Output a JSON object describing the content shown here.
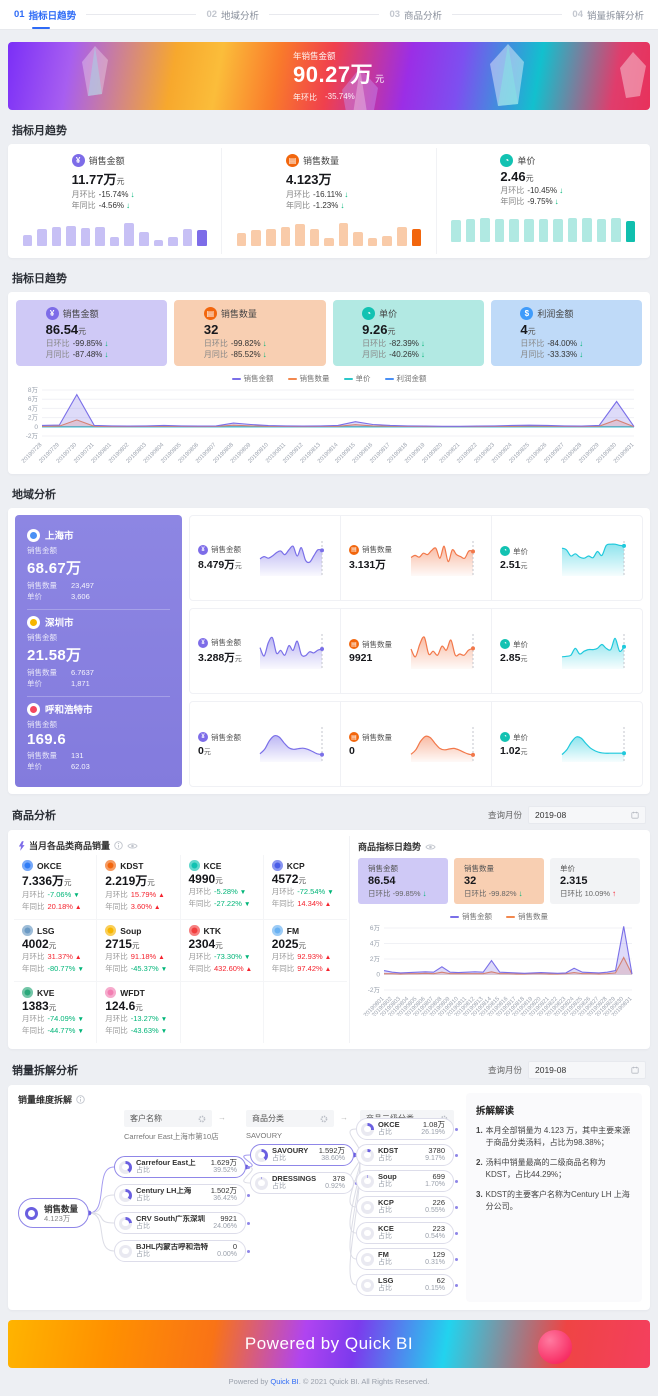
{
  "nav": {
    "steps": [
      {
        "num": "01",
        "label": "指标日趋势"
      },
      {
        "num": "02",
        "label": "地域分析"
      },
      {
        "num": "03",
        "label": "商品分析"
      },
      {
        "num": "04",
        "label": "销量拆解分析"
      }
    ]
  },
  "banner": {
    "label": "年销售金额",
    "value": "90.27万",
    "unit": "元",
    "yoy_label": "年环比",
    "yoy_value": "-35.74%"
  },
  "monthly": {
    "section_title": "指标月趋势",
    "cards": [
      {
        "label": "销售金额",
        "value": "11.77万",
        "unit": "元",
        "rows": [
          {
            "k": "月环比",
            "v": "-15.74%",
            "dir": "down"
          },
          {
            "k": "年同比",
            "v": "-4.56%",
            "dir": "down"
          }
        ]
      },
      {
        "label": "销售数量",
        "value": "4.123万",
        "unit": "",
        "rows": [
          {
            "k": "月环比",
            "v": "-16.11%",
            "dir": "down"
          },
          {
            "k": "年同比",
            "v": "-1.23%",
            "dir": "down"
          }
        ]
      },
      {
        "label": "单价",
        "value": "2.46",
        "unit": "元",
        "rows": [
          {
            "k": "月环比",
            "v": "-10.45%",
            "dir": "down"
          },
          {
            "k": "年同比",
            "v": "-9.75%",
            "dir": "down"
          }
        ]
      }
    ]
  },
  "daily": {
    "section_title": "指标日趋势",
    "cards": [
      {
        "label": "销售金额",
        "value": "86.54",
        "unit": "元",
        "rows": [
          {
            "k": "日环比",
            "v": "-99.85%",
            "dir": "down"
          },
          {
            "k": "月同比",
            "v": "-87.48%",
            "dir": "down"
          }
        ]
      },
      {
        "label": "销售数量",
        "value": "32",
        "unit": "",
        "rows": [
          {
            "k": "日环比",
            "v": "-99.82%",
            "dir": "down"
          },
          {
            "k": "月同比",
            "v": "-85.52%",
            "dir": "down"
          }
        ]
      },
      {
        "label": "单价",
        "value": "9.26",
        "unit": "元",
        "rows": [
          {
            "k": "日环比",
            "v": "-82.39%",
            "dir": "down"
          },
          {
            "k": "月同比",
            "v": "-40.26%",
            "dir": "down"
          }
        ]
      },
      {
        "label": "利润金额",
        "value": "4",
        "unit": "元",
        "rows": [
          {
            "k": "日环比",
            "v": "-84.00%",
            "dir": "down"
          },
          {
            "k": "月同比",
            "v": "-33.33%",
            "dir": "down"
          }
        ]
      }
    ],
    "legend": [
      "销售金额",
      "销售数量",
      "单价",
      "利润金额"
    ]
  },
  "region": {
    "section_title": "地域分析",
    "cities": [
      {
        "name": "上海市",
        "amount_label": "销售金额",
        "amount": "68.67万",
        "qty_label": "销售数量",
        "qty": "23,497",
        "price_label": "单价",
        "price": "3,606"
      },
      {
        "name": "深圳市",
        "amount_label": "销售金额",
        "amount": "21.58万",
        "qty_label": "销售数量",
        "qty": "6.7637",
        "price_label": "单价",
        "price": "1,871"
      },
      {
        "name": "呼和浩特市",
        "amount_label": "销售金额",
        "amount": "169.6",
        "qty_label": "销售数量",
        "qty": "131",
        "price_label": "单价",
        "price": "62.03"
      }
    ],
    "charts": [
      {
        "label": "销售金额",
        "value": "8.479万",
        "unit": "元"
      },
      {
        "label": "销售数量",
        "value": "3.131万",
        "unit": ""
      },
      {
        "label": "单价",
        "value": "2.51",
        "unit": "元"
      },
      {
        "label": "销售金额",
        "value": "3.288万",
        "unit": "元"
      },
      {
        "label": "销售数量",
        "value": "9921",
        "unit": ""
      },
      {
        "label": "单价",
        "value": "2.85",
        "unit": "元"
      },
      {
        "label": "销售金额",
        "value": "0",
        "unit": "元"
      },
      {
        "label": "销售数量",
        "value": "0",
        "unit": ""
      },
      {
        "label": "单价",
        "value": "1.02",
        "unit": "元"
      }
    ]
  },
  "products": {
    "section_title": "商品分析",
    "query_label": "查询月份",
    "query_value": "2019-08",
    "left_title": "当月各品类商品销量",
    "mom_label": "月环比",
    "yoy_label": "年同比",
    "items": [
      {
        "name": "OKCE",
        "value": "7.336万",
        "unit": "元",
        "mom": "-7.06%",
        "mom_dir": "down",
        "yoy": "20.18%",
        "yoy_dir": "up"
      },
      {
        "name": "KDST",
        "value": "2.219万",
        "unit": "元",
        "mom": "15.79%",
        "mom_dir": "up",
        "yoy": "3.60%",
        "yoy_dir": "up"
      },
      {
        "name": "KCE",
        "value": "4990",
        "unit": "元",
        "mom": "-5.28%",
        "mom_dir": "down",
        "yoy": "-27.22%",
        "yoy_dir": "down"
      },
      {
        "name": "KCP",
        "value": "4572",
        "unit": "元",
        "mom": "-72.54%",
        "mom_dir": "down",
        "yoy": "14.34%",
        "yoy_dir": "up"
      },
      {
        "name": "LSG",
        "value": "4002",
        "unit": "元",
        "mom": "31.37%",
        "mom_dir": "up",
        "yoy": "-80.77%",
        "yoy_dir": "down"
      },
      {
        "name": "Soup",
        "value": "2715",
        "unit": "元",
        "mom": "91.18%",
        "mom_dir": "up",
        "yoy": "-45.37%",
        "yoy_dir": "down"
      },
      {
        "name": "KTK",
        "value": "2304",
        "unit": "元",
        "mom": "-73.30%",
        "mom_dir": "down",
        "yoy": "432.60%",
        "yoy_dir": "up"
      },
      {
        "name": "FM",
        "value": "2025",
        "unit": "元",
        "mom": "92.93%",
        "mom_dir": "up",
        "yoy": "97.42%",
        "yoy_dir": "up"
      },
      {
        "name": "KVE",
        "value": "1383",
        "unit": "元",
        "mom": "-74.09%",
        "mom_dir": "down",
        "yoy": "-44.77%",
        "yoy_dir": "down"
      },
      {
        "name": "WFDT",
        "value": "124.6",
        "unit": "元",
        "mom": "-13.27%",
        "mom_dir": "down",
        "yoy": "-43.63%",
        "yoy_dir": "down"
      }
    ],
    "right_title": "商品指标日趋势",
    "right_cards": [
      {
        "label": "销售金额",
        "value": "86.54",
        "k": "日环比",
        "v": "-99.85%",
        "dir": "down"
      },
      {
        "label": "销售数量",
        "value": "32",
        "k": "日环比",
        "v": "-99.82%",
        "dir": "down"
      },
      {
        "label": "单价",
        "value": "2.315",
        "k": "日环比",
        "v": "10.09%",
        "dir": "up"
      }
    ],
    "legend": [
      "销售金额",
      "销售数量"
    ]
  },
  "decomp": {
    "section_title": "销量拆解分析",
    "query_label": "查询月份",
    "query_value": "2019-08",
    "left_title": "销量维度拆解",
    "share_label": "占比",
    "col_headers": [
      {
        "label": "客户名称",
        "value": "Carrefour East上海市第10店"
      },
      {
        "label": "商品分类",
        "value": "SAVOURY"
      },
      {
        "label": "商品二级分类",
        "value": ""
      }
    ],
    "root": {
      "label": "销售数量",
      "value": "4.123万"
    },
    "level1": [
      {
        "name": "Carrefour East上",
        "value": "1.629万",
        "share": "39.52%"
      },
      {
        "name": "Century LH上海",
        "value": "1.502万",
        "share": "36.42%"
      },
      {
        "name": "CRV South广东深圳",
        "value": "9921",
        "share": "24.06%"
      },
      {
        "name": "BJHL内蒙古呼和浩特",
        "value": "0",
        "share": "0.00%"
      }
    ],
    "level2": [
      {
        "name": "SAVOURY",
        "value": "1.592万",
        "share": "38.60%"
      },
      {
        "name": "DRESSINGS",
        "value": "378",
        "share": "0.92%"
      }
    ],
    "level3": [
      {
        "name": "OKCE",
        "value": "1.08万",
        "share": "26.19%"
      },
      {
        "name": "KDST",
        "value": "3780",
        "share": "9.17%"
      },
      {
        "name": "Soup",
        "value": "699",
        "share": "1.70%"
      },
      {
        "name": "KCP",
        "value": "226",
        "share": "0.55%"
      },
      {
        "name": "KCE",
        "value": "223",
        "share": "0.54%"
      },
      {
        "name": "FM",
        "value": "129",
        "share": "0.31%"
      },
      {
        "name": "LSG",
        "value": "62",
        "share": "0.15%"
      }
    ],
    "insights_title": "拆解解读",
    "insights": [
      {
        "num": "1.",
        "text": "本月全部销量为 4.123 万，其中主要来源于商品分类汤料，占比为98.38%；"
      },
      {
        "num": "2.",
        "text": "汤料中销量最高的二级商品名称为KDST，占比44.29%；"
      },
      {
        "num": "3.",
        "text": "KDST的主要客户名称为Century LH 上海分公司。"
      }
    ]
  },
  "footer": {
    "banner_text": "Powered by Quick BI",
    "prefix": "Powered by ",
    "brand": "Quick BI",
    "suffix": ". © 2021 Quick BI. All Rights Reserved."
  },
  "palette": {
    "purple": "#7d6ce8",
    "orange": "#f2660d",
    "teal": "#12c2b2",
    "blue": "#3f9bfa",
    "cyan": "#1fc9dc",
    "green_down": "#00b578",
    "red_up": "#f5222d",
    "nav_active": "#2e6bf6"
  },
  "chart_data": [
    {
      "id": "month-amount",
      "type": "bar",
      "title": "销售金额月趋势",
      "values": [
        38,
        56,
        63,
        66,
        60,
        63,
        30,
        76,
        46,
        20,
        30,
        58,
        55
      ],
      "color": "#c7c0f5",
      "highlight": "#7d6ce8"
    },
    {
      "id": "month-qty",
      "type": "bar",
      "title": "销售数量月趋势",
      "values": [
        45,
        52,
        58,
        64,
        72,
        58,
        28,
        78,
        46,
        26,
        32,
        62,
        58
      ],
      "color": "#f9cba9",
      "highlight": "#f2660d"
    },
    {
      "id": "month-price",
      "type": "bar",
      "title": "单价月趋势",
      "values": [
        74,
        78,
        80,
        78,
        76,
        78,
        76,
        78,
        80,
        81,
        78,
        80,
        70
      ],
      "color": "#b0e9e2",
      "highlight": "#10bfae"
    },
    {
      "id": "daily-trend",
      "type": "line",
      "title": "指标日趋势",
      "ylim": [
        -2,
        8
      ],
      "x_label_h": 30,
      "y_ticks": [
        {
          "label": "8万",
          "v": 8
        },
        {
          "label": "6万",
          "v": 6
        },
        {
          "label": "4万",
          "v": 4
        },
        {
          "label": "2万",
          "v": 2
        },
        {
          "label": "0",
          "v": 0
        },
        {
          "label": "-2万",
          "v": -2
        }
      ],
      "x": [
        "20190728",
        "20190729",
        "20190730",
        "20190731",
        "20190801",
        "20190802",
        "20190803",
        "20190804",
        "20190805",
        "20190806",
        "20190807",
        "20190808",
        "20190809",
        "20190810",
        "20190811",
        "20190812",
        "20190813",
        "20190814",
        "20190815",
        "20190816",
        "20190817",
        "20190818",
        "20190819",
        "20190820",
        "20190821",
        "20190822",
        "20190823",
        "20190824",
        "20190825",
        "20190826",
        "20190827",
        "20190828",
        "20190829",
        "20190830",
        "20190831"
      ],
      "series": [
        {
          "name": "销售金额",
          "color": "#7a6fe8",
          "values": [
            0.3,
            0.4,
            7,
            0.3,
            0.2,
            0.15,
            0.2,
            0.3,
            0.2,
            0.15,
            0.2,
            0.8,
            0.5,
            0.25,
            0.2,
            0.15,
            0.2,
            0.3,
            1.1,
            0.5,
            0.3,
            0.2,
            0.15,
            0.1,
            0.1,
            0.15,
            0.2,
            0.3,
            0.35,
            0.3,
            0.2,
            0.15,
            0.3,
            5.5,
            0.05
          ]
        },
        {
          "name": "销售数量",
          "color": "#f2884f",
          "values": [
            0.1,
            0.15,
            1.5,
            0.1,
            0.05,
            0.05,
            0.08,
            0.1,
            0.08,
            0.05,
            0.08,
            0.35,
            0.2,
            0.1,
            0.08,
            0.05,
            0.08,
            0.1,
            0.45,
            0.2,
            0.12,
            0.08,
            0.05,
            0.04,
            0.04,
            0.05,
            0.08,
            0.1,
            0.15,
            0.12,
            0.08,
            0.05,
            0.12,
            1.5,
            0.02
          ]
        },
        {
          "name": "单价",
          "color": "#2bc7c9",
          "values": [
            0,
            0,
            0,
            0,
            0,
            0,
            0,
            0,
            0,
            0,
            0,
            0,
            0,
            0,
            0,
            0,
            0,
            0,
            0,
            0,
            0,
            0,
            0,
            0,
            0,
            0,
            0,
            0,
            0,
            0,
            0,
            0,
            0,
            0,
            0
          ]
        },
        {
          "name": "利润金额",
          "color": "#4a90f5",
          "values": [
            0,
            0,
            0,
            0,
            0,
            0,
            0,
            0,
            0,
            0,
            0,
            0,
            0,
            0,
            0,
            0,
            0,
            0,
            0,
            0,
            0,
            0,
            0,
            0,
            0,
            0,
            0,
            0,
            0,
            0,
            0,
            0,
            0,
            0,
            0
          ]
        }
      ]
    },
    {
      "id": "rg-sh-amount",
      "type": "area",
      "color": "#7a6fe8",
      "points": [
        0.4,
        0.48,
        0.42,
        0.5,
        0.62,
        0.68,
        0.55,
        0.72,
        0.85,
        0.5,
        0.8,
        0.35,
        0.28,
        0.5,
        0.72,
        0.7
      ]
    },
    {
      "id": "rg-sh-qty",
      "type": "area",
      "color": "#f2784a",
      "points": [
        0.45,
        0.52,
        0.46,
        0.6,
        0.55,
        0.7,
        0.78,
        0.42,
        0.85,
        0.3,
        0.72,
        0.55,
        0.48,
        0.42,
        0.68,
        0.66
      ]
    },
    {
      "id": "rg-sh-price",
      "type": "area",
      "color": "#1fc9dc",
      "points": [
        0.78,
        0.72,
        0.5,
        0.58,
        0.46,
        0.42,
        0.5,
        0.44,
        0.66,
        0.52,
        0.88,
        0.92,
        0.92,
        0.88,
        0.86
      ]
    },
    {
      "id": "rg-sz-amount",
      "type": "area",
      "color": "#7a6fe8",
      "points": [
        0.55,
        0.25,
        0.72,
        0.9,
        0.35,
        0.45,
        0.28,
        0.62,
        0.45,
        0.78,
        0.3,
        0.26,
        0.4,
        0.36,
        0.46,
        0.5
      ]
    },
    {
      "id": "rg-sz-qty",
      "type": "area",
      "color": "#f2784a",
      "points": [
        0.5,
        0.22,
        0.68,
        0.92,
        0.32,
        0.42,
        0.28,
        0.6,
        0.46,
        0.82,
        0.28,
        0.32,
        0.28,
        0.46,
        0.52
      ]
    },
    {
      "id": "rg-sz-price",
      "type": "area",
      "color": "#1fc9dc",
      "points": [
        0.22,
        0.24,
        0.28,
        0.52,
        0.32,
        0.42,
        0.48,
        0.48,
        0.52,
        0.66,
        0.52,
        0.48,
        0.88,
        0.42,
        0.58
      ]
    },
    {
      "id": "rg-hh-amount",
      "type": "area",
      "color": "#7a6fe8",
      "points": [
        0.08,
        0.25,
        0.55,
        0.72,
        0.68,
        0.48,
        0.3,
        0.24,
        0.26,
        0.28,
        0.24,
        0.16,
        0.08,
        0.05
      ]
    },
    {
      "id": "rg-hh-qty",
      "type": "area",
      "color": "#f2784a",
      "points": [
        0.06,
        0.22,
        0.52,
        0.7,
        0.66,
        0.46,
        0.28,
        0.22,
        0.25,
        0.27,
        0.22,
        0.14,
        0.07,
        0.04
      ]
    },
    {
      "id": "rg-hh-price",
      "type": "area",
      "color": "#1fc9dc",
      "points": [
        0.05,
        0.22,
        0.5,
        0.68,
        0.64,
        0.45,
        0.28,
        0.18,
        0.12,
        0.1,
        0.1,
        0.1,
        0.1,
        0.1
      ]
    },
    {
      "id": "product-trend",
      "type": "line",
      "title": "商品指标日趋势",
      "ylim": [
        -2,
        6
      ],
      "x_label_h": 26,
      "y_ticks": [
        {
          "label": "6万",
          "v": 6
        },
        {
          "label": "4万",
          "v": 4
        },
        {
          "label": "2万",
          "v": 2
        },
        {
          "label": "0",
          "v": 0
        },
        {
          "label": "-2万",
          "v": -2
        }
      ],
      "x": [
        "20190801",
        "20190802",
        "20190803",
        "20190804",
        "20190805",
        "20190806",
        "20190807",
        "20190808",
        "20190809",
        "20190810",
        "20190811",
        "20190812",
        "20190813",
        "20190814",
        "20190815",
        "20190816",
        "20190817",
        "20190818",
        "20190819",
        "20190820",
        "20190821",
        "20190822",
        "20190823",
        "20190824",
        "20190825",
        "20190826",
        "20190827",
        "20190828",
        "20190829",
        "20190830",
        "20190831"
      ],
      "series": [
        {
          "name": "销售金额",
          "color": "#7a6fe8",
          "values": [
            0.5,
            0.3,
            0.2,
            0.25,
            0.3,
            0.35,
            0.3,
            1,
            0.3,
            0.25,
            0.3,
            0.35,
            0.3,
            1.8,
            0.3,
            0.25,
            0.2,
            0.15,
            0.2,
            0.25,
            0.2,
            0.15,
            0.2,
            0.8,
            0.3,
            0.25,
            0.2,
            0.3,
            0.5,
            6.2,
            0.05
          ]
        },
        {
          "name": "销售数量",
          "color": "#f2884f",
          "values": [
            0.1,
            0.1,
            0.05,
            0.1,
            0.1,
            0.15,
            0.1,
            0.3,
            0.1,
            0.1,
            0.1,
            0.1,
            0.1,
            0.35,
            0.1,
            0.1,
            0.05,
            0.05,
            0.1,
            0.1,
            0.05,
            0.05,
            0.1,
            0.25,
            0.1,
            0.1,
            0.05,
            0.1,
            0.2,
            2.2,
            0.02
          ]
        }
      ]
    }
  ]
}
